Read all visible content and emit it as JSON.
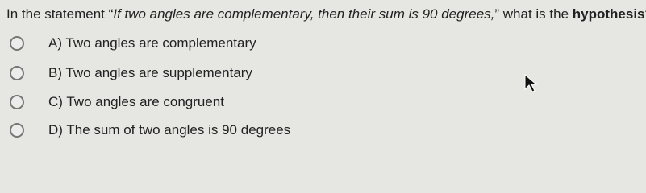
{
  "question": {
    "before": "In the statement “",
    "italic": "If two angles are complementary, then their sum is 90 degrees,",
    "middle": "” what is the ",
    "bold": "hypothesis",
    "end": "?"
  },
  "options": [
    "A) Two angles are complementary",
    "B) Two angles are supplementary",
    "C) Two angles are congruent",
    "D) The sum of two angles is 90 degrees"
  ]
}
